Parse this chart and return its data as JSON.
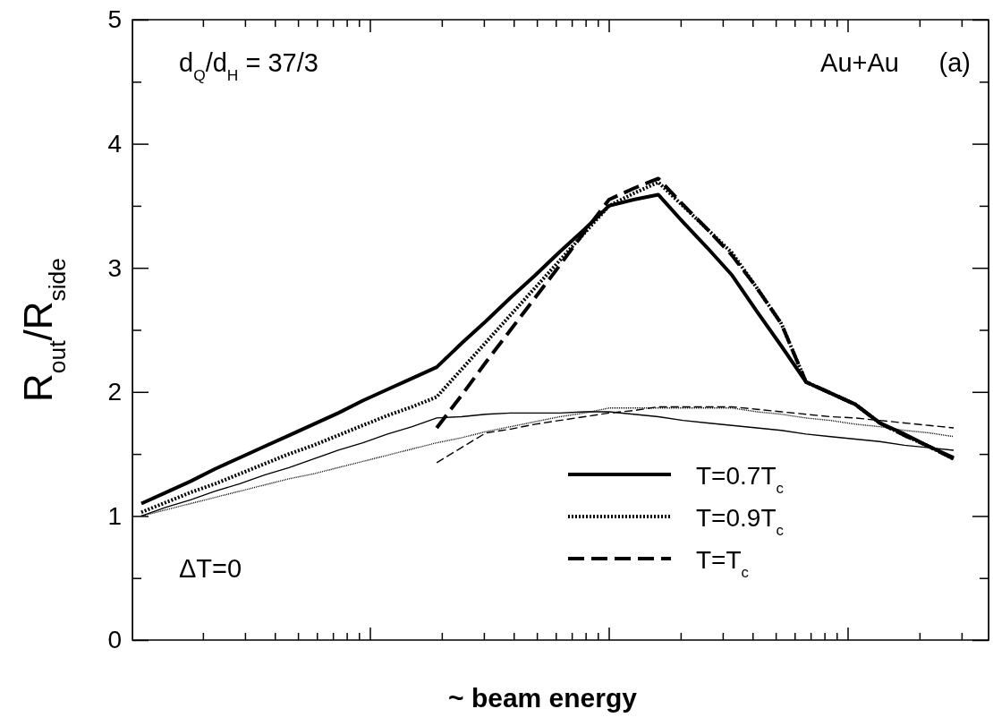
{
  "chart_data": {
    "type": "line",
    "xlabel": "~ beam energy",
    "ylabel": "R$_{out}$/R$_{side}$",
    "categories": [
      null,
      null,
      null,
      null,
      null,
      null,
      null,
      null,
      null,
      null,
      null,
      null,
      null,
      null,
      null,
      null,
      null,
      null,
      null,
      null,
      null,
      null,
      null,
      null,
      null,
      null,
      null,
      null,
      null,
      null,
      null,
      null,
      null,
      null
    ],
    "ylim": [
      0,
      5
    ],
    "yticks": [
      0,
      {
        "value": 0.5,
        "label": null
      },
      1,
      {
        "value": 1.5,
        "label": null
      },
      2,
      {
        "value": 2.5,
        "label": null
      },
      3,
      {
        "value": 3.5,
        "label": null
      },
      4,
      {
        "value": 4.5,
        "label": null
      },
      5
    ],
    "grid": false,
    "legend": "bottom right",
    "marker": "none",
    "annotations": [
      "d$_{Q}$/d$_{H}$ = 37/3",
      "Au+Au",
      "(a)",
      "ΔT=0"
    ],
    "series": [
      {
        "name": "T=0.7T$_{c}$",
        "color": "#000000",
        "line_style": "solid",
        "values": [
          1.1,
          1.19,
          1.28,
          1.38,
          1.47,
          1.56,
          1.65,
          1.74,
          1.83,
          1.93,
          2.02,
          2.11,
          2.2,
          2.39,
          2.57,
          2.76,
          2.94,
          3.13,
          3.31,
          3.5,
          3.55,
          3.59,
          3.37,
          3.16,
          2.94,
          2.65,
          2.37,
          2.08,
          1.99,
          1.9,
          1.75,
          1.66,
          1.56,
          1.47
        ]
      },
      {
        "name": "T=0.9T$_{c}$",
        "color": "#000000",
        "line_style": "dotted",
        "values": [
          1.03,
          1.11,
          1.19,
          1.26,
          1.34,
          1.42,
          1.5,
          1.57,
          1.65,
          1.73,
          1.81,
          1.88,
          1.96,
          2.18,
          2.4,
          2.62,
          2.84,
          3.06,
          3.28,
          3.5,
          3.6,
          3.69,
          3.5,
          3.31,
          3.12,
          2.84,
          2.55,
          2.08,
          1.99,
          1.9,
          1.75,
          1.65,
          1.56,
          1.46
        ]
      },
      {
        "name": "T=T$_{c}$",
        "color": "#000000",
        "line_style": "dashed",
        "values": [
          null,
          null,
          null,
          null,
          null,
          null,
          null,
          null,
          null,
          null,
          null,
          null,
          1.71,
          1.97,
          2.24,
          2.5,
          2.76,
          3.02,
          3.29,
          3.55,
          3.64,
          3.72,
          3.51,
          3.31,
          3.1,
          2.84,
          2.55,
          2.08,
          1.99,
          1.9,
          1.75,
          1.65,
          1.56,
          1.46
        ]
      },
      {
        "color": "#000000",
        "line_style": "solid",
        "values": [
          1.0,
          1.07,
          1.13,
          1.2,
          1.26,
          1.33,
          1.39,
          1.46,
          1.53,
          1.59,
          1.66,
          1.72,
          1.79,
          1.8,
          1.82,
          1.83,
          1.83,
          1.83,
          1.84,
          1.84,
          1.82,
          1.8,
          1.77,
          1.75,
          1.73,
          1.71,
          1.69,
          1.66,
          1.64,
          1.62,
          1.6,
          1.57,
          1.55,
          1.53
        ]
      },
      {
        "color": "#000000",
        "line_style": "dotted",
        "values": [
          1.0,
          1.05,
          1.1,
          1.15,
          1.2,
          1.25,
          1.3,
          1.34,
          1.39,
          1.44,
          1.49,
          1.54,
          1.59,
          1.63,
          1.68,
          1.72,
          1.76,
          1.8,
          1.83,
          1.87,
          1.87,
          1.87,
          1.87,
          1.87,
          1.87,
          1.84,
          1.82,
          1.79,
          1.77,
          1.74,
          1.72,
          1.69,
          1.67,
          1.64
        ]
      },
      {
        "color": "#000000",
        "line_style": "dashed",
        "values": [
          null,
          null,
          null,
          null,
          null,
          null,
          null,
          null,
          null,
          null,
          null,
          null,
          1.43,
          1.55,
          1.67,
          1.7,
          1.74,
          1.77,
          1.8,
          1.83,
          1.85,
          1.88,
          1.88,
          1.88,
          1.88,
          1.86,
          1.84,
          1.82,
          1.8,
          1.79,
          1.77,
          1.75,
          1.73,
          1.71
        ]
      }
    ]
  }
}
